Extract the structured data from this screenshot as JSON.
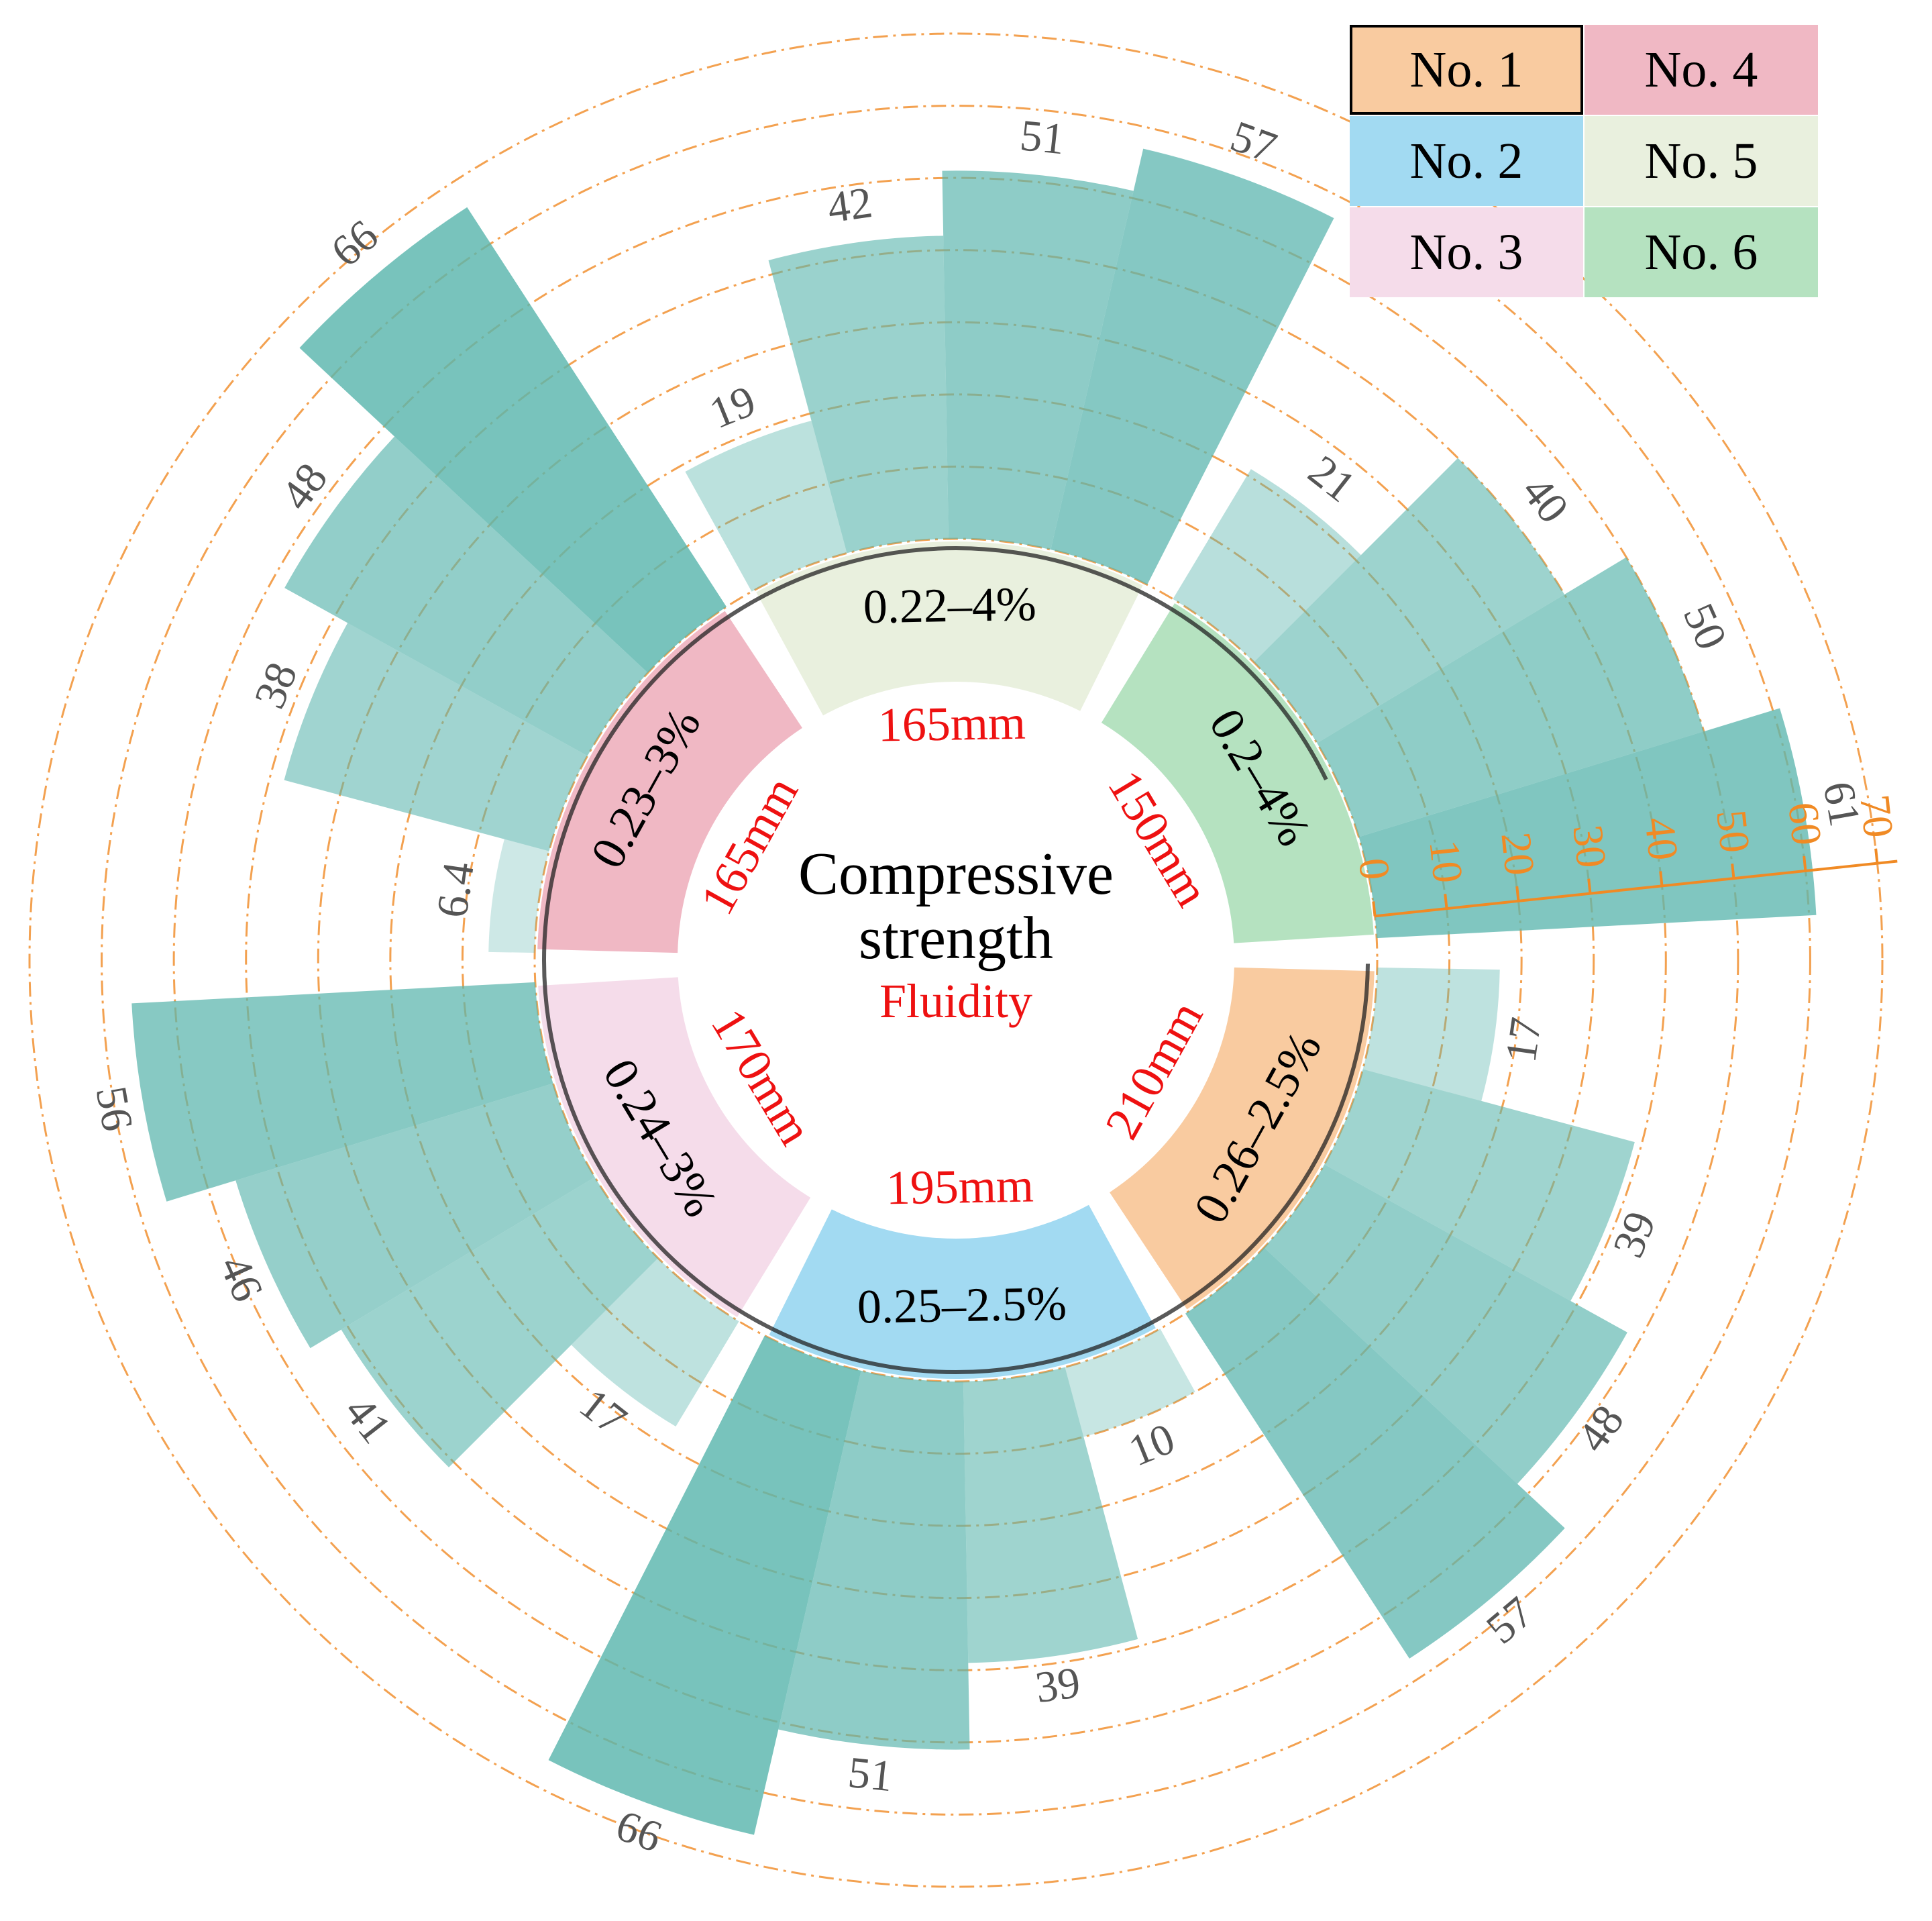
{
  "chart_data": {
    "type": "radial-bar",
    "center_label": "Compressive strength",
    "center_sublabel": "Fluidity",
    "bar_color": "#5ab5ad",
    "axis_color": "#f08a24",
    "label_color": "#555555",
    "fluidity_color": "#ee1111",
    "rlim": [
      0,
      70
    ],
    "rticks": [
      0,
      10,
      20,
      30,
      40,
      50,
      60,
      70
    ],
    "groups": [
      {
        "name": "No. 1",
        "color": "#f9cba0",
        "ratio": "0.26–2.5%",
        "fluidity": "210mm",
        "values": [
          17,
          39,
          48,
          57
        ]
      },
      {
        "name": "No. 2",
        "color": "#a2daf2",
        "ratio": "0.25–2.5%",
        "fluidity": "195mm",
        "values": [
          10,
          39,
          51,
          66
        ]
      },
      {
        "name": "No. 3",
        "color": "#f5dcea",
        "ratio": "0.24–3%",
        "fluidity": "170mm",
        "values": [
          17,
          41,
          46,
          56
        ]
      },
      {
        "name": "No. 4",
        "color": "#f0b8c4",
        "ratio": "0.23–3%",
        "fluidity": "165mm",
        "values": [
          6.4,
          38,
          48,
          66
        ]
      },
      {
        "name": "No. 5",
        "color": "#e9f0de",
        "ratio": "0.22–4%",
        "fluidity": "165mm",
        "values": [
          19,
          42,
          51,
          57
        ]
      },
      {
        "name": "No. 6",
        "color": "#b5e2c0",
        "ratio": "0.2–4%",
        "fluidity": "150mm",
        "values": [
          21,
          40,
          50,
          61
        ]
      }
    ]
  }
}
